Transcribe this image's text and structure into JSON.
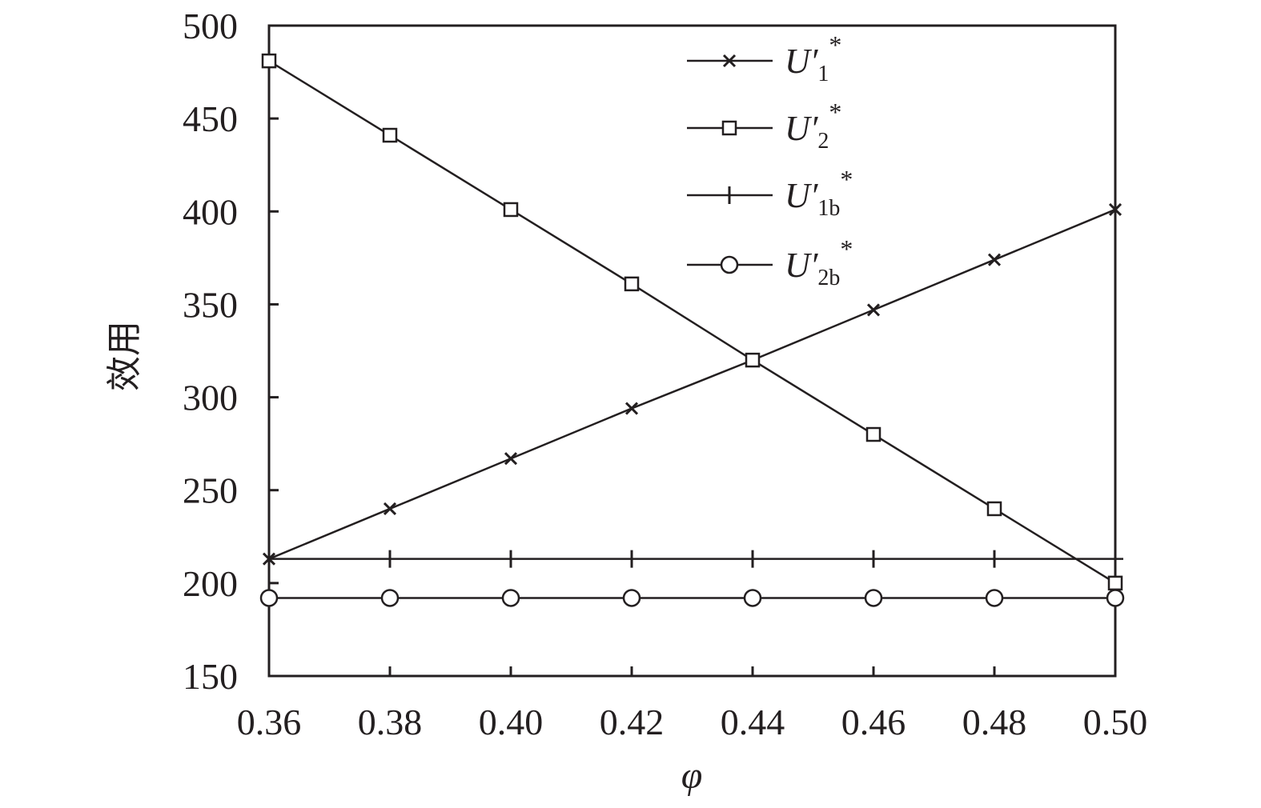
{
  "chart_data": {
    "type": "line",
    "xlabel": "φ",
    "ylabel": "效用",
    "xlim": [
      0.36,
      0.5
    ],
    "ylim": [
      150,
      500
    ],
    "x": [
      0.36,
      0.38,
      0.4,
      0.42,
      0.44,
      0.46,
      0.48,
      0.5
    ],
    "x_ticks": [
      "0.36",
      "0.38",
      "0.40",
      "0.42",
      "0.44",
      "0.46",
      "0.48",
      "0.50"
    ],
    "y_ticks": [
      "150",
      "200",
      "250",
      "300",
      "350",
      "400",
      "450",
      "500"
    ],
    "grid": false,
    "legend_position": "top-right",
    "series": [
      {
        "name": "U′1*",
        "label_main": "U",
        "label_sub": "1",
        "marker": "x",
        "values": [
          213,
          240,
          267,
          294,
          320,
          347,
          374,
          401
        ]
      },
      {
        "name": "U′2*",
        "label_main": "U",
        "label_sub": "2",
        "marker": "square",
        "values": [
          481,
          441,
          401,
          361,
          320,
          280,
          240,
          200
        ]
      },
      {
        "name": "U′1b*",
        "label_main": "U",
        "label_sub": "1b",
        "marker": "plus",
        "values": [
          213,
          213,
          213,
          213,
          213,
          213,
          213,
          213
        ]
      },
      {
        "name": "U′2b*",
        "label_main": "U",
        "label_sub": "2b",
        "marker": "circle",
        "values": [
          192,
          192,
          192,
          192,
          192,
          192,
          192,
          192
        ]
      }
    ],
    "line_color": "#231f20"
  }
}
